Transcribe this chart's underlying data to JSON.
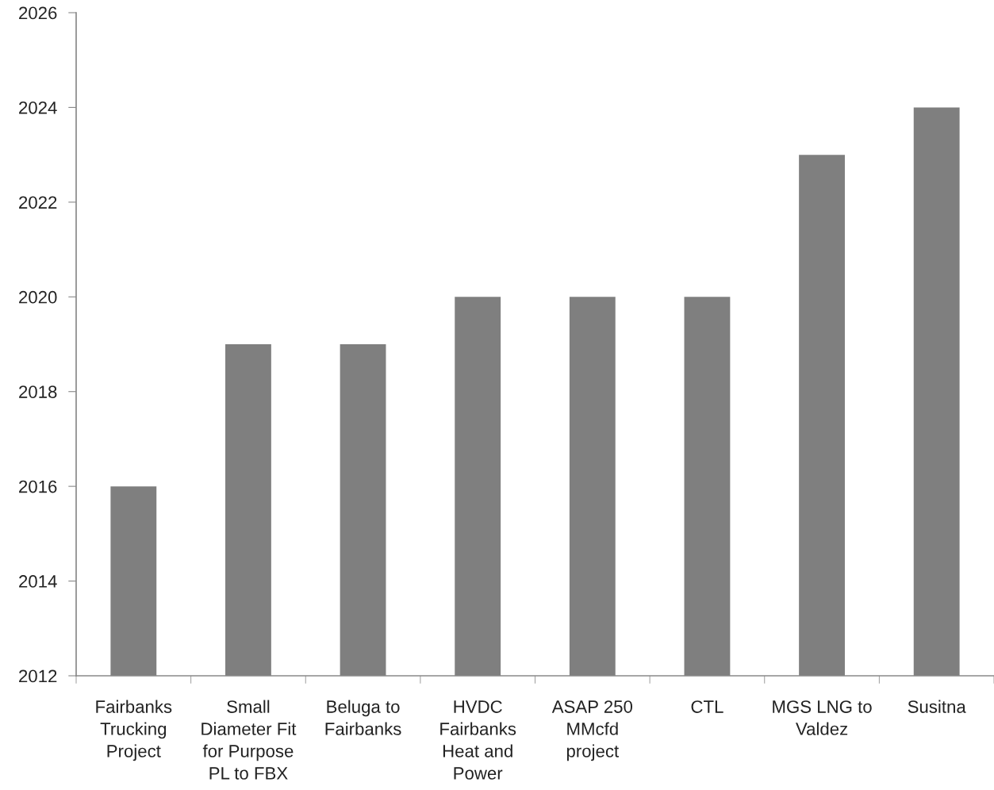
{
  "chart_data": {
    "type": "bar",
    "categories": [
      "Fairbanks\nTrucking\nProject",
      "Small\nDiameter Fit\nfor Purpose\nPL to FBX",
      "Beluga to\nFairbanks",
      "HVDC\nFairbanks\nHeat and\nPower",
      "ASAP 250\nMMcfd\nproject",
      "CTL",
      "MGS LNG to\nValdez",
      "Susitna"
    ],
    "values": [
      2016,
      2019,
      2019,
      2020,
      2020,
      2020,
      2023,
      2024
    ],
    "color": "#7f7f7f",
    "ylim": [
      2012,
      2026
    ],
    "yticks": [
      2012,
      2014,
      2016,
      2018,
      2020,
      2022,
      2024,
      2026
    ]
  }
}
